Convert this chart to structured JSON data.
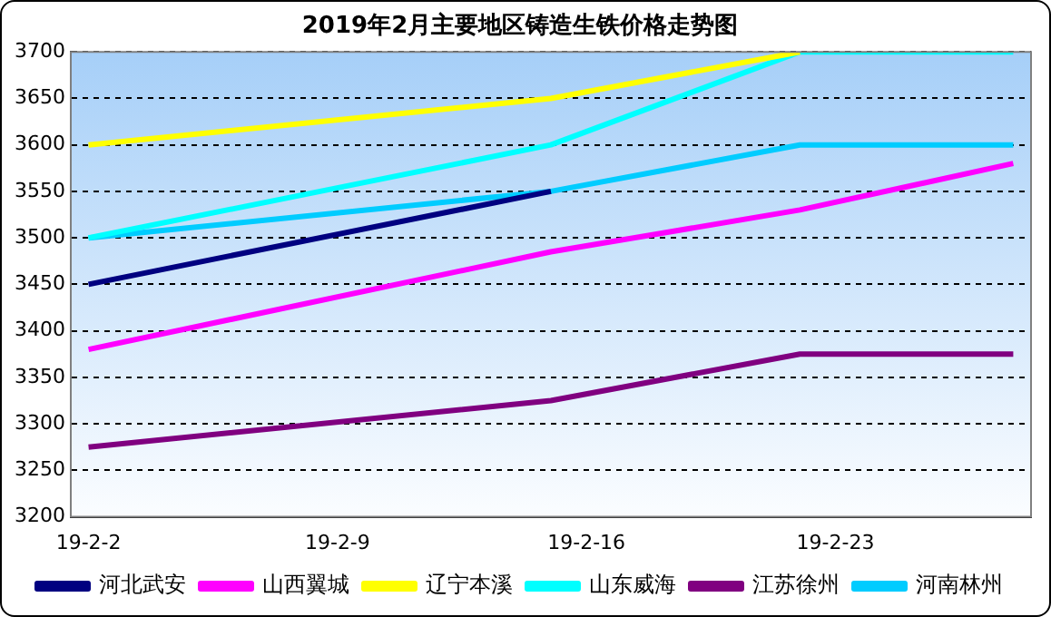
{
  "chart_data": {
    "type": "line",
    "title": "2019年2月主要地区铸造生铁价格走势图",
    "x": [
      "2019-02-02",
      "2019-02-15",
      "2019-02-22",
      "2019-02-28"
    ],
    "xlim": [
      "2019-02-01T12:00",
      "2019-02-28T12:00"
    ],
    "xticks": [
      {
        "value": "2019-02-02",
        "label": "19-2-2"
      },
      {
        "value": "2019-02-09",
        "label": "19-2-9"
      },
      {
        "value": "2019-02-16",
        "label": "19-2-16"
      },
      {
        "value": "2019-02-23",
        "label": "19-2-23"
      }
    ],
    "ylim": [
      3200,
      3700
    ],
    "yticks": [
      3200,
      3250,
      3300,
      3350,
      3400,
      3450,
      3500,
      3550,
      3600,
      3650,
      3700
    ],
    "grid": "y",
    "legend": "bottom",
    "marker": "none",
    "line_style": "solid",
    "series": [
      {
        "name": "河北武安",
        "color": "#000080",
        "values": [
          3450,
          3550,
          null,
          null
        ]
      },
      {
        "name": "山西翼城",
        "color": "#ff00ff",
        "values": [
          3380,
          3485,
          3530,
          3580
        ]
      },
      {
        "name": "辽宁本溪",
        "color": "#ffff00",
        "values": [
          3600,
          3650,
          3700,
          null
        ]
      },
      {
        "name": "山东威海",
        "color": "#00ffff",
        "values": [
          3500,
          3600,
          3700,
          3700
        ]
      },
      {
        "name": "江苏徐州",
        "color": "#800080",
        "values": [
          3275,
          3325,
          3375,
          3375
        ]
      },
      {
        "name": "河南林州",
        "color": "#00ccff",
        "values": [
          3500,
          3550,
          3600,
          3600
        ]
      }
    ]
  }
}
